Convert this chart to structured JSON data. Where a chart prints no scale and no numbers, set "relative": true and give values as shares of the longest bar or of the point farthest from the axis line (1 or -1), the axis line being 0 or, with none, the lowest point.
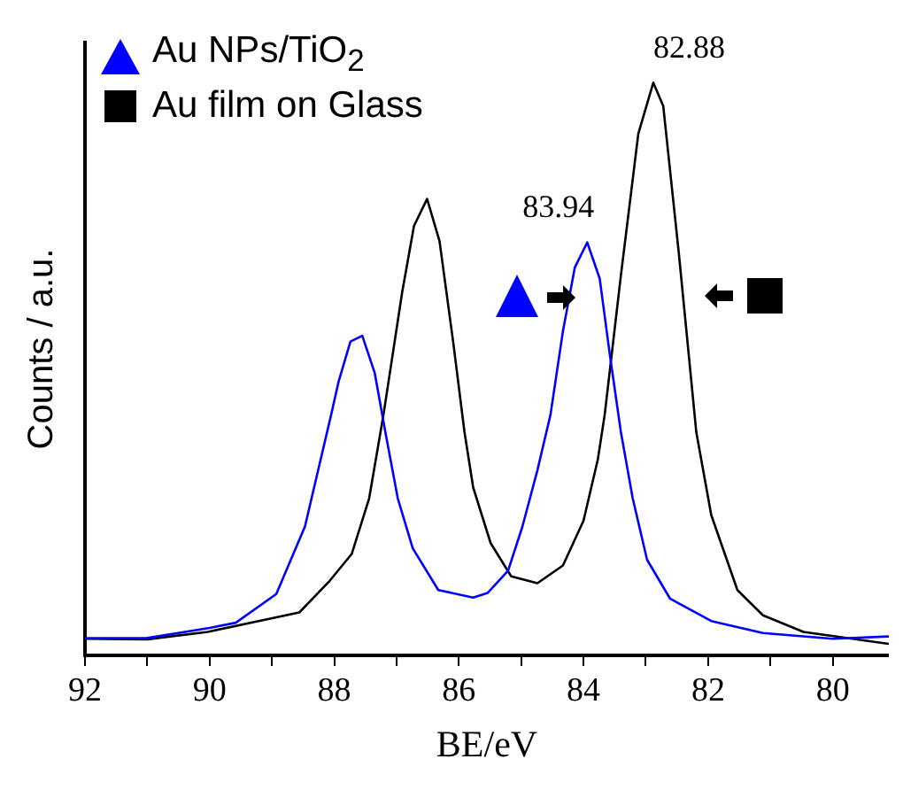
{
  "chart_data": {
    "type": "line",
    "xlabel": "BE/eV",
    "ylabel": "Counts / a.u.",
    "relative": true,
    "xlim": [
      92,
      79.1
    ],
    "xticks": [
      92,
      {
        "value": 91,
        "label": null
      },
      90,
      {
        "value": 89,
        "label": null
      },
      88,
      {
        "value": 87,
        "label": null
      },
      86,
      {
        "value": 85,
        "label": null
      },
      84,
      {
        "value": 83,
        "label": null
      },
      82,
      {
        "value": 81,
        "label": null
      },
      80
    ],
    "legend": "top left",
    "grid": false,
    "marker": "none",
    "tick_labels": "x",
    "annotations": [
      {
        "text": "83.94",
        "x": 83.94,
        "y": 0.721
      },
      {
        "text": "82.88",
        "x": 82.88,
        "y": 1.0
      }
    ],
    "series": [
      {
        "name": "Au NPs/TiO$_{2}$",
        "color": "#0000ff",
        "x": [
          92,
          91.02,
          90.0,
          89.58,
          88.93,
          88.47,
          88.05,
          87.93,
          87.74,
          87.55,
          87.35,
          87.18,
          86.98,
          86.74,
          86.33,
          85.77,
          85.54,
          85.21,
          84.98,
          84.74,
          84.53,
          84.33,
          84.14,
          83.94,
          83.74,
          83.58,
          83.4,
          83.21,
          82.98,
          82.61,
          81.95,
          81.12,
          80.0,
          79.1
        ],
        "values": [
          0.03,
          0.03,
          0.048,
          0.057,
          0.107,
          0.225,
          0.42,
          0.478,
          0.548,
          0.558,
          0.493,
          0.39,
          0.274,
          0.187,
          0.114,
          0.101,
          0.109,
          0.148,
          0.225,
          0.323,
          0.42,
          0.566,
          0.677,
          0.721,
          0.658,
          0.527,
          0.39,
          0.274,
          0.167,
          0.099,
          0.06,
          0.039,
          0.029,
          0.033
        ]
      },
      {
        "name": "Au film on Glass",
        "color": "#000000",
        "x": [
          92,
          91.0,
          90.03,
          88.56,
          88.09,
          87.72,
          87.44,
          87.21,
          86.91,
          86.72,
          86.51,
          86.31,
          86.09,
          85.91,
          85.77,
          85.49,
          85.16,
          84.74,
          84.33,
          84.0,
          83.77,
          83.66,
          83.4,
          83.12,
          82.88,
          82.72,
          82.47,
          82.19,
          81.95,
          81.53,
          81.12,
          80.47,
          79.1
        ],
        "values": [
          0.029,
          0.028,
          0.041,
          0.075,
          0.128,
          0.177,
          0.274,
          0.42,
          0.634,
          0.75,
          0.797,
          0.723,
          0.546,
          0.39,
          0.293,
          0.196,
          0.138,
          0.126,
          0.157,
          0.235,
          0.342,
          0.42,
          0.663,
          0.911,
          1.0,
          0.959,
          0.702,
          0.39,
          0.245,
          0.114,
          0.07,
          0.041,
          0.02
        ]
      }
    ]
  }
}
